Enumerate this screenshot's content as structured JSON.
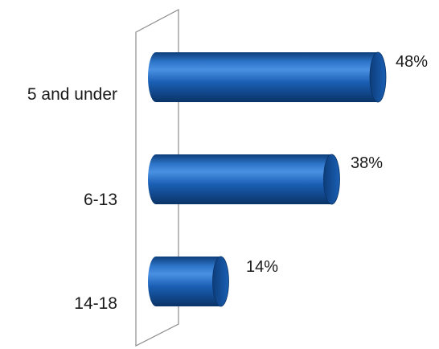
{
  "chart_data": {
    "type": "bar",
    "orientation": "horizontal",
    "style": "3d-cylinder",
    "categories": [
      "5 and under",
      "6-13",
      "14-18"
    ],
    "values": [
      48,
      38,
      14
    ],
    "value_labels": [
      "48%",
      "38%",
      "14%"
    ],
    "unit": "%",
    "xlim": [
      0,
      50
    ],
    "grid": false,
    "legend": "none",
    "colors": {
      "bar": "#1a5fb4",
      "bar_light": "#4a90e2",
      "bar_dark": "#0d3d7a",
      "wall": "#8c8c8c"
    }
  }
}
